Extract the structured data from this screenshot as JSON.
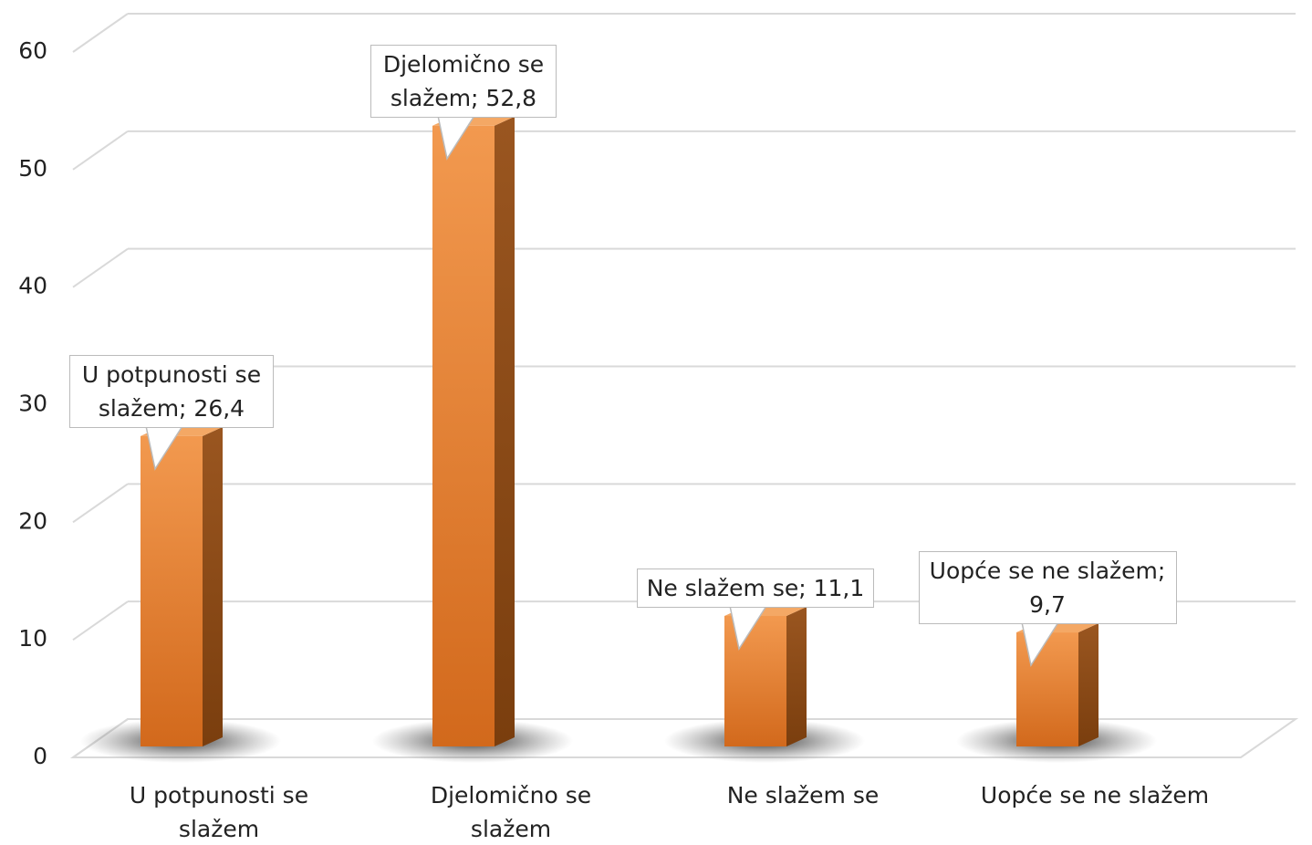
{
  "chart_data": {
    "type": "bar3d",
    "categories": [
      "U potpunosti se slažem",
      "Djelomično se slažem",
      "Ne slažem se",
      "Uopće se ne slažem"
    ],
    "values": [
      26.4,
      52.8,
      11.1,
      9.7
    ],
    "value_labels": [
      "U potpunosti se slažem; 26,4",
      "Djelomično se slažem; 52,8",
      "Ne slažem se; 11,1",
      "Uopće se ne slažem; 9,7"
    ],
    "color": "#e57d2e",
    "ylim": [
      0,
      60
    ],
    "yticks": [
      0,
      10,
      20,
      30,
      40,
      50,
      60
    ],
    "grid": true
  }
}
